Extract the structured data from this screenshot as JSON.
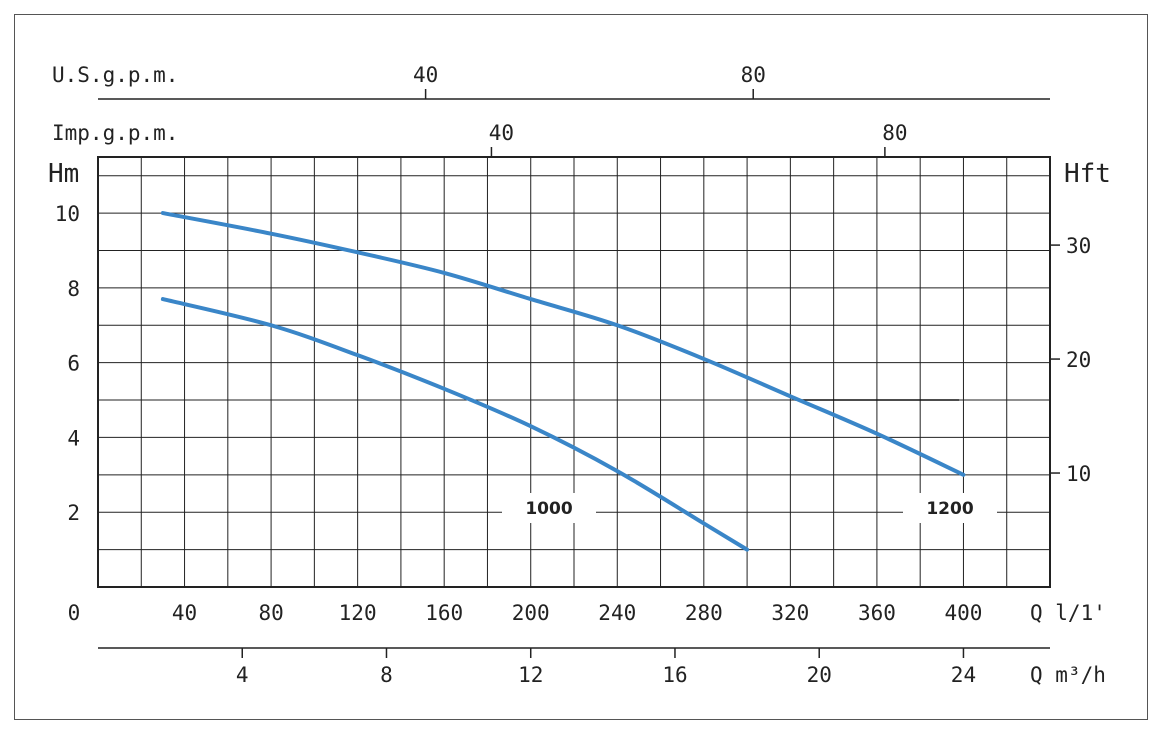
{
  "chart_data": {
    "type": "line",
    "title": "",
    "x_axis": {
      "label": "Q l/1'",
      "range": [
        0,
        440
      ],
      "ticks": [
        0,
        40,
        80,
        120,
        160,
        200,
        240,
        280,
        320,
        360,
        400
      ]
    },
    "x_axis_m3h": {
      "label": "Q m³/h",
      "ticks": [
        4,
        8,
        12,
        16,
        20,
        24
      ]
    },
    "x_axis_usgpm": {
      "label": "U.S.g.p.m.",
      "ticks": [
        40,
        80
      ]
    },
    "x_axis_impgpm": {
      "label": "Imp.g.p.m.",
      "ticks": [
        40,
        80
      ]
    },
    "y_axis": {
      "label": "Hm",
      "range": [
        0,
        11.5
      ],
      "ticks": [
        2,
        4,
        6,
        8,
        10
      ]
    },
    "y_axis_right": {
      "label": "Hft",
      "ticks": [
        10,
        20,
        30
      ]
    },
    "grid": true,
    "series": [
      {
        "name": "1000",
        "color": "#3a86c8",
        "points": [
          [
            30,
            7.7
          ],
          [
            80,
            7.0
          ],
          [
            120,
            6.2
          ],
          [
            160,
            5.3
          ],
          [
            200,
            4.3
          ],
          [
            240,
            3.1
          ],
          [
            280,
            1.7
          ],
          [
            300,
            1.0
          ]
        ]
      },
      {
        "name": "1200",
        "color": "#3a86c8",
        "points": [
          [
            30,
            10.0
          ],
          [
            80,
            9.45
          ],
          [
            120,
            8.95
          ],
          [
            160,
            8.4
          ],
          [
            200,
            7.7
          ],
          [
            240,
            7.0
          ],
          [
            280,
            6.1
          ],
          [
            320,
            5.1
          ],
          [
            360,
            4.1
          ],
          [
            400,
            3.0
          ]
        ]
      }
    ]
  }
}
